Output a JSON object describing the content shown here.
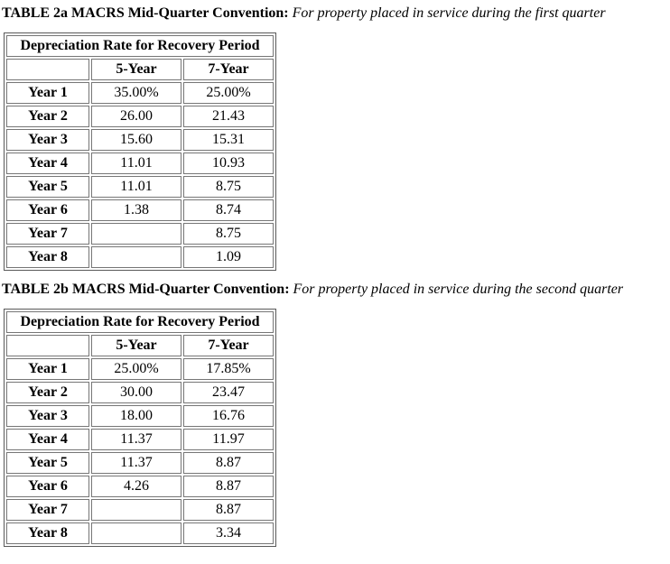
{
  "tables": [
    {
      "title_bold": "TABLE 2a MACRS Mid-Quarter Convention:",
      "title_italic": "For property placed in service during the first quarter",
      "header": "Depreciation Rate for Recovery Period",
      "columns": {
        "col_5yr": "5-Year",
        "col_7yr": "7-Year"
      },
      "rows": [
        {
          "label": "Year 1",
          "five": "35.00%",
          "seven": "25.00%"
        },
        {
          "label": "Year 2",
          "five": "26.00",
          "seven": "21.43"
        },
        {
          "label": "Year 3",
          "five": "15.60",
          "seven": "15.31"
        },
        {
          "label": "Year 4",
          "five": "11.01",
          "seven": "10.93"
        },
        {
          "label": "Year 5",
          "five": "11.01",
          "seven": "8.75"
        },
        {
          "label": "Year 6",
          "five": "1.38",
          "seven": "8.74"
        },
        {
          "label": "Year 7",
          "five": "",
          "seven": "8.75"
        },
        {
          "label": "Year 8",
          "five": "",
          "seven": "1.09"
        }
      ]
    },
    {
      "title_bold": "TABLE 2b MACRS Mid-Quarter Convention:",
      "title_italic": "For property placed in service during the second quarter",
      "header": "Depreciation Rate for Recovery Period",
      "columns": {
        "col_5yr": "5-Year",
        "col_7yr": "7-Year"
      },
      "rows": [
        {
          "label": "Year 1",
          "five": "25.00%",
          "seven": "17.85%"
        },
        {
          "label": "Year 2",
          "five": "30.00",
          "seven": "23.47"
        },
        {
          "label": "Year 3",
          "five": "18.00",
          "seven": "16.76"
        },
        {
          "label": "Year 4",
          "five": "11.37",
          "seven": "11.97"
        },
        {
          "label": "Year 5",
          "five": "11.37",
          "seven": "8.87"
        },
        {
          "label": "Year 6",
          "five": "4.26",
          "seven": "8.87"
        },
        {
          "label": "Year 7",
          "five": "",
          "seven": "8.87"
        },
        {
          "label": "Year 8",
          "five": "",
          "seven": "3.34"
        }
      ]
    }
  ],
  "colors": {
    "text": "#000000",
    "table_outer_border": "#595959",
    "cell_border": "#767676",
    "background": "#ffffff"
  }
}
